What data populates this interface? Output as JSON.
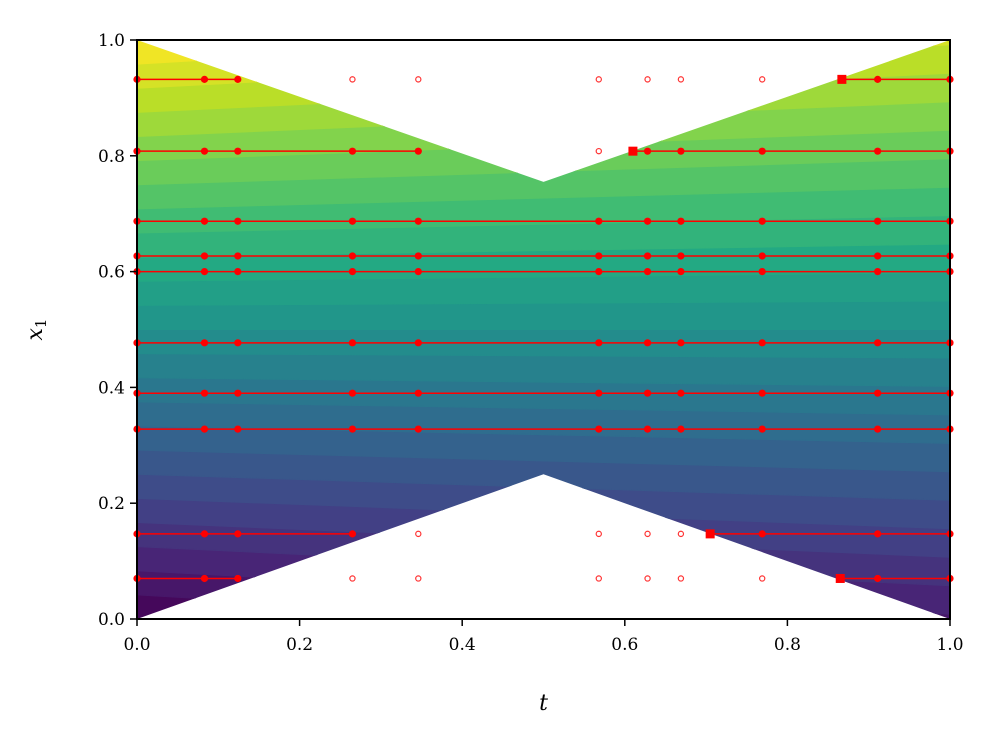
{
  "chart_data": {
    "type": "scatter",
    "title": "",
    "xlabel": "t",
    "ylabel_main": "x",
    "ylabel_sub": "1",
    "xlim": [
      0.0,
      1.0
    ],
    "ylim": [
      0.0,
      1.0
    ],
    "x_ticks": [
      "0.0",
      "0.2",
      "0.4",
      "0.6",
      "0.8",
      "1.0"
    ],
    "y_ticks": [
      "0.0",
      "0.2",
      "0.4",
      "0.6",
      "0.8",
      "1.0"
    ],
    "grid": false,
    "background": "contour-filled region (viridis) between boundaries x1 = 0.5·t-scaled bowtie; white outside",
    "colormap": [
      "#440154",
      "#482475",
      "#414487",
      "#355f8d",
      "#2a788e",
      "#21918c",
      "#22a884",
      "#44bf70",
      "#7ad151",
      "#bddf26",
      "#fde725"
    ],
    "marker_color": "#ff0000",
    "sample_times": [
      0.0,
      0.083,
      0.124,
      0.265,
      0.346,
      0.568,
      0.628,
      0.669,
      0.769,
      0.911,
      1.0
    ],
    "trajectories": [
      {
        "x1": 0.932,
        "segments": [
          [
            0.0,
            0.124
          ],
          [
            0.867,
            1.0
          ]
        ],
        "filled_t": [
          0.0,
          0.083,
          0.124,
          0.911,
          1.0
        ],
        "hollow_t": [
          0.265,
          0.346,
          0.568,
          0.628,
          0.669,
          0.769
        ],
        "square_t": [
          0.867
        ]
      },
      {
        "x1": 0.808,
        "segments": [
          [
            0.0,
            0.346
          ],
          [
            0.61,
            1.0
          ]
        ],
        "filled_t": [
          0.0,
          0.083,
          0.124,
          0.265,
          0.346,
          0.628,
          0.669,
          0.769,
          0.911,
          1.0
        ],
        "hollow_t": [
          0.568
        ],
        "square_t": [
          0.61
        ]
      },
      {
        "x1": 0.687,
        "segments": [
          [
            0.0,
            1.0
          ]
        ],
        "filled_t": [
          0.0,
          0.083,
          0.124,
          0.265,
          0.346,
          0.568,
          0.628,
          0.669,
          0.769,
          0.911,
          1.0
        ],
        "hollow_t": [],
        "square_t": []
      },
      {
        "x1": 0.627,
        "segments": [
          [
            0.0,
            1.0
          ]
        ],
        "filled_t": [
          0.0,
          0.083,
          0.124,
          0.265,
          0.346,
          0.568,
          0.628,
          0.669,
          0.769,
          0.911,
          1.0
        ],
        "hollow_t": [],
        "square_t": []
      },
      {
        "x1": 0.6,
        "segments": [
          [
            0.0,
            1.0
          ]
        ],
        "filled_t": [
          0.0,
          0.083,
          0.124,
          0.265,
          0.346,
          0.568,
          0.628,
          0.669,
          0.769,
          0.911,
          1.0
        ],
        "hollow_t": [],
        "square_t": []
      },
      {
        "x1": 0.477,
        "segments": [
          [
            0.0,
            1.0
          ]
        ],
        "filled_t": [
          0.0,
          0.083,
          0.124,
          0.265,
          0.346,
          0.568,
          0.628,
          0.669,
          0.769,
          0.911,
          1.0
        ],
        "hollow_t": [],
        "square_t": []
      },
      {
        "x1": 0.39,
        "segments": [
          [
            0.0,
            1.0
          ]
        ],
        "filled_t": [
          0.0,
          0.083,
          0.124,
          0.265,
          0.346,
          0.568,
          0.628,
          0.669,
          0.769,
          0.911,
          1.0
        ],
        "hollow_t": [],
        "square_t": []
      },
      {
        "x1": 0.328,
        "segments": [
          [
            0.0,
            1.0
          ]
        ],
        "filled_t": [
          0.0,
          0.083,
          0.124,
          0.265,
          0.346,
          0.568,
          0.628,
          0.669,
          0.769,
          0.911,
          1.0
        ],
        "hollow_t": [],
        "square_t": []
      },
      {
        "x1": 0.147,
        "segments": [
          [
            0.0,
            0.265
          ],
          [
            0.705,
            1.0
          ]
        ],
        "filled_t": [
          0.0,
          0.083,
          0.124,
          0.265,
          0.769,
          0.911,
          1.0
        ],
        "hollow_t": [
          0.346,
          0.568,
          0.628,
          0.669
        ],
        "square_t": [
          0.705
        ]
      },
      {
        "x1": 0.07,
        "segments": [
          [
            0.0,
            0.124
          ],
          [
            0.865,
            1.0
          ]
        ],
        "filled_t": [
          0.0,
          0.083,
          0.124,
          0.911,
          1.0
        ],
        "hollow_t": [
          0.265,
          0.346,
          0.568,
          0.628,
          0.669,
          0.769
        ],
        "square_t": [
          0.865
        ]
      }
    ]
  }
}
